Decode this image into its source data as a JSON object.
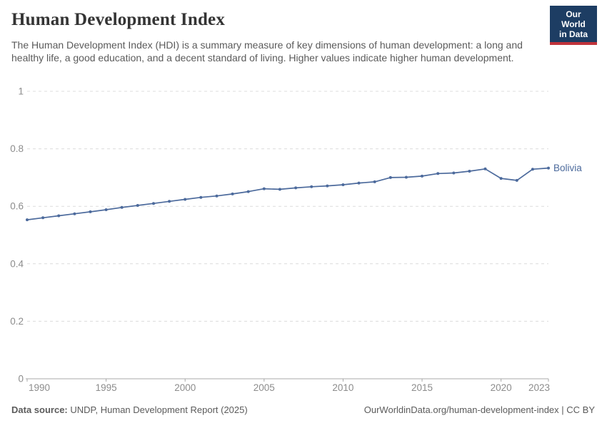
{
  "header": {
    "title": "Human Development Index",
    "subtitle": "The Human Development Index (HDI) is a summary measure of key dimensions of human development: a long and healthy life, a good education, and a decent standard of living. Higher values indicate higher human development.",
    "logo": {
      "line1": "Our World",
      "line2": "in Data"
    }
  },
  "chart_data": {
    "type": "line",
    "title": "Human Development Index",
    "entity_label": "Bolivia",
    "x": [
      1990,
      1991,
      1992,
      1993,
      1994,
      1995,
      1996,
      1997,
      1998,
      1999,
      2000,
      2001,
      2002,
      2003,
      2004,
      2005,
      2006,
      2007,
      2008,
      2009,
      2010,
      2011,
      2012,
      2013,
      2014,
      2015,
      2016,
      2017,
      2018,
      2019,
      2020,
      2021,
      2022,
      2023
    ],
    "series": [
      {
        "name": "Bolivia",
        "color": "#4c6a9c",
        "values": [
          0.553,
          0.56,
          0.567,
          0.574,
          0.581,
          0.588,
          0.596,
          0.603,
          0.61,
          0.617,
          0.624,
          0.631,
          0.636,
          0.643,
          0.651,
          0.661,
          0.659,
          0.664,
          0.668,
          0.671,
          0.675,
          0.681,
          0.685,
          0.7,
          0.701,
          0.705,
          0.714,
          0.716,
          0.722,
          0.73,
          0.697,
          0.69,
          0.729,
          0.733
        ]
      }
    ],
    "xlabel": "",
    "ylabel": "",
    "xlim": [
      1990,
      2023
    ],
    "ylim": [
      0,
      1
    ],
    "x_ticks": [
      1990,
      1995,
      2000,
      2005,
      2010,
      2015,
      2020,
      2023
    ],
    "y_ticks": [
      0,
      0.2,
      0.4,
      0.6,
      0.8,
      1
    ],
    "y_tick_labels": [
      "0",
      "0.2",
      "0.4",
      "0.6",
      "0.8",
      "1"
    ],
    "grid": "horizontal-dashed",
    "legend_position": "end-of-line-label"
  },
  "footer": {
    "datasource_label": "Data source:",
    "datasource_value": "UNDP, Human Development Report (2025)",
    "link": "OurWorldinData.org/human-development-index | CC BY"
  },
  "colors": {
    "line": "#4c6a9c",
    "gridline": "#dcdcdc",
    "axis": "#a8a8a8",
    "tick_text": "#8c8c8c",
    "logo_bg": "#1d3d63",
    "logo_red": "#c0333b"
  }
}
